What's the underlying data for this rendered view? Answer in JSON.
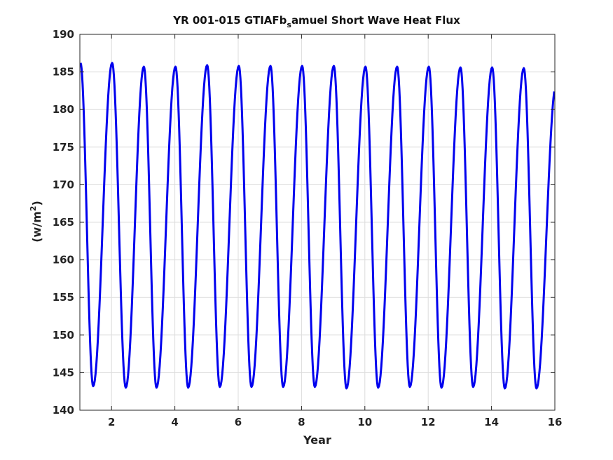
{
  "chart_data": {
    "type": "line",
    "title_main": "YR 001-015 GTIAFb",
    "title_sub": "s",
    "title_rest": "amuel Short Wave Heat Flux",
    "xlabel": "Year",
    "ylabel_main": "(w/m",
    "ylabel_sup": "2",
    "ylabel_end": ")",
    "xlim": [
      1,
      16
    ],
    "ylim": [
      140,
      190
    ],
    "xticks": [
      2,
      4,
      6,
      8,
      10,
      12,
      14,
      16
    ],
    "yticks": [
      140,
      145,
      150,
      155,
      160,
      165,
      170,
      175,
      180,
      185,
      190
    ],
    "grid": true,
    "line_color": "#0000ee",
    "series": [
      {
        "peaks": [
          {
            "x": 1.02,
            "y": 186.2
          },
          {
            "x": 2.02,
            "y": 186.2
          },
          {
            "x": 3.02,
            "y": 185.7
          },
          {
            "x": 4.02,
            "y": 185.7
          },
          {
            "x": 5.02,
            "y": 185.9
          },
          {
            "x": 6.02,
            "y": 185.8
          },
          {
            "x": 7.02,
            "y": 185.8
          },
          {
            "x": 8.02,
            "y": 185.8
          },
          {
            "x": 9.02,
            "y": 185.8
          },
          {
            "x": 10.02,
            "y": 185.7
          },
          {
            "x": 11.02,
            "y": 185.7
          },
          {
            "x": 12.02,
            "y": 185.7
          },
          {
            "x": 13.02,
            "y": 185.6
          },
          {
            "x": 14.02,
            "y": 185.6
          },
          {
            "x": 15.02,
            "y": 185.5
          }
        ],
        "troughs": [
          {
            "x": 1.42,
            "y": 143.2
          },
          {
            "x": 2.45,
            "y": 143.0
          },
          {
            "x": 3.42,
            "y": 143.0
          },
          {
            "x": 4.42,
            "y": 143.0
          },
          {
            "x": 5.42,
            "y": 143.1
          },
          {
            "x": 6.42,
            "y": 143.1
          },
          {
            "x": 7.42,
            "y": 143.1
          },
          {
            "x": 8.42,
            "y": 143.1
          },
          {
            "x": 9.42,
            "y": 142.9
          },
          {
            "x": 10.42,
            "y": 143.0
          },
          {
            "x": 11.42,
            "y": 143.1
          },
          {
            "x": 12.42,
            "y": 143.0
          },
          {
            "x": 13.42,
            "y": 143.1
          },
          {
            "x": 14.42,
            "y": 142.9
          },
          {
            "x": 15.42,
            "y": 142.9
          }
        ],
        "end": {
          "x": 15.98,
          "y": 182.4
        }
      }
    ]
  }
}
